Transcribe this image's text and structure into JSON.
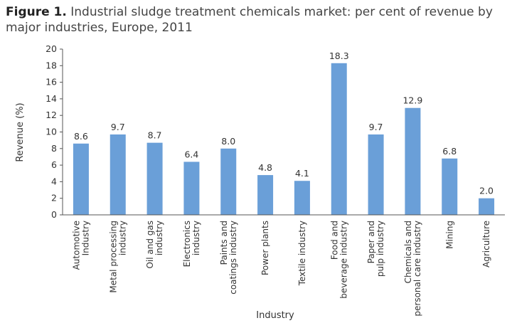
{
  "caption": {
    "figure_label": "Figure 1.",
    "text": " Industrial sludge treatment chemicals market: per cent of revenue by major industries, Europe, 2011"
  },
  "chart_data": {
    "type": "bar",
    "title": "Industrial sludge treatment chemicals market: per cent of revenue by major industries, Europe, 2011",
    "xlabel": "Industry",
    "ylabel": "Revenue (%)",
    "ylim": [
      0,
      20
    ],
    "yticks": [
      0,
      2,
      4,
      6,
      8,
      10,
      12,
      14,
      16,
      18,
      20
    ],
    "grid": false,
    "bar_color": "#6a9fd8",
    "categories": [
      [
        "Automotive",
        "Industry"
      ],
      [
        "Metal processing",
        "industry"
      ],
      [
        "Oil and gas",
        "industry"
      ],
      [
        "Electronics",
        "industry"
      ],
      [
        "Paints and",
        "coatings industry"
      ],
      [
        "Power plants"
      ],
      [
        "Textile industry"
      ],
      [
        "Food and",
        "beverage industry"
      ],
      [
        "Paper and",
        "pulp industry"
      ],
      [
        "Chemicals and",
        "personal care industry"
      ],
      [
        "Mining"
      ],
      [
        "Agriculture"
      ]
    ],
    "values": [
      8.6,
      9.7,
      8.7,
      6.4,
      8.0,
      4.8,
      4.1,
      18.3,
      9.7,
      12.9,
      6.8,
      2.0
    ],
    "value_labels": [
      "8.6",
      "9.7",
      "8.7",
      "6.4",
      "8.0",
      "4.8",
      "4.1",
      "18.3",
      "9.7",
      "12.9",
      "6.8",
      "2.0"
    ]
  }
}
